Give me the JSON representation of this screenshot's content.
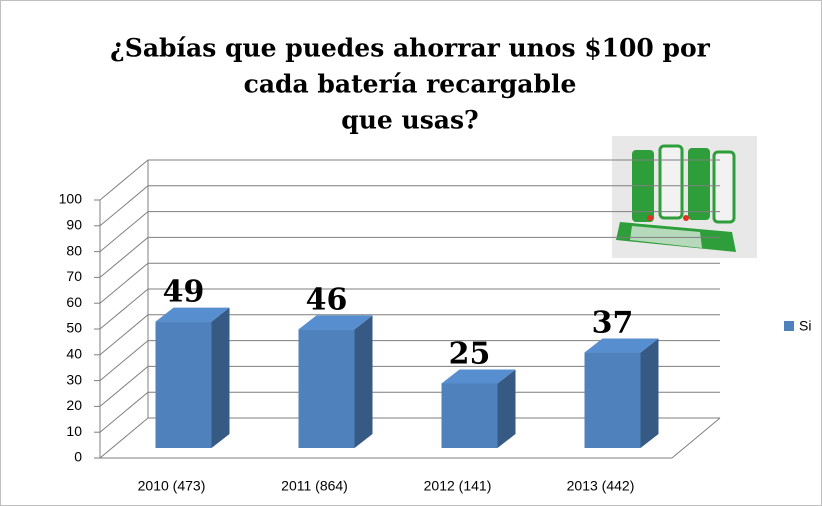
{
  "chart_data": {
    "type": "bar",
    "title": [
      "¿Sabías que puedes ahorrar unos $100 por",
      "cada batería recargable",
      "que usas?"
    ],
    "categories": [
      "2010 (473)",
      "2011 (864)",
      "2012 (141)",
      "2013 (442)"
    ],
    "series": [
      {
        "name": "Si",
        "color": "#4f81bd",
        "values": [
          49,
          46,
          25,
          37
        ]
      }
    ],
    "ylim": [
      0,
      100
    ],
    "yticks": [
      0,
      10,
      20,
      30,
      40,
      50,
      60,
      70,
      80,
      90,
      100
    ],
    "grid": true,
    "legend": "right"
  }
}
